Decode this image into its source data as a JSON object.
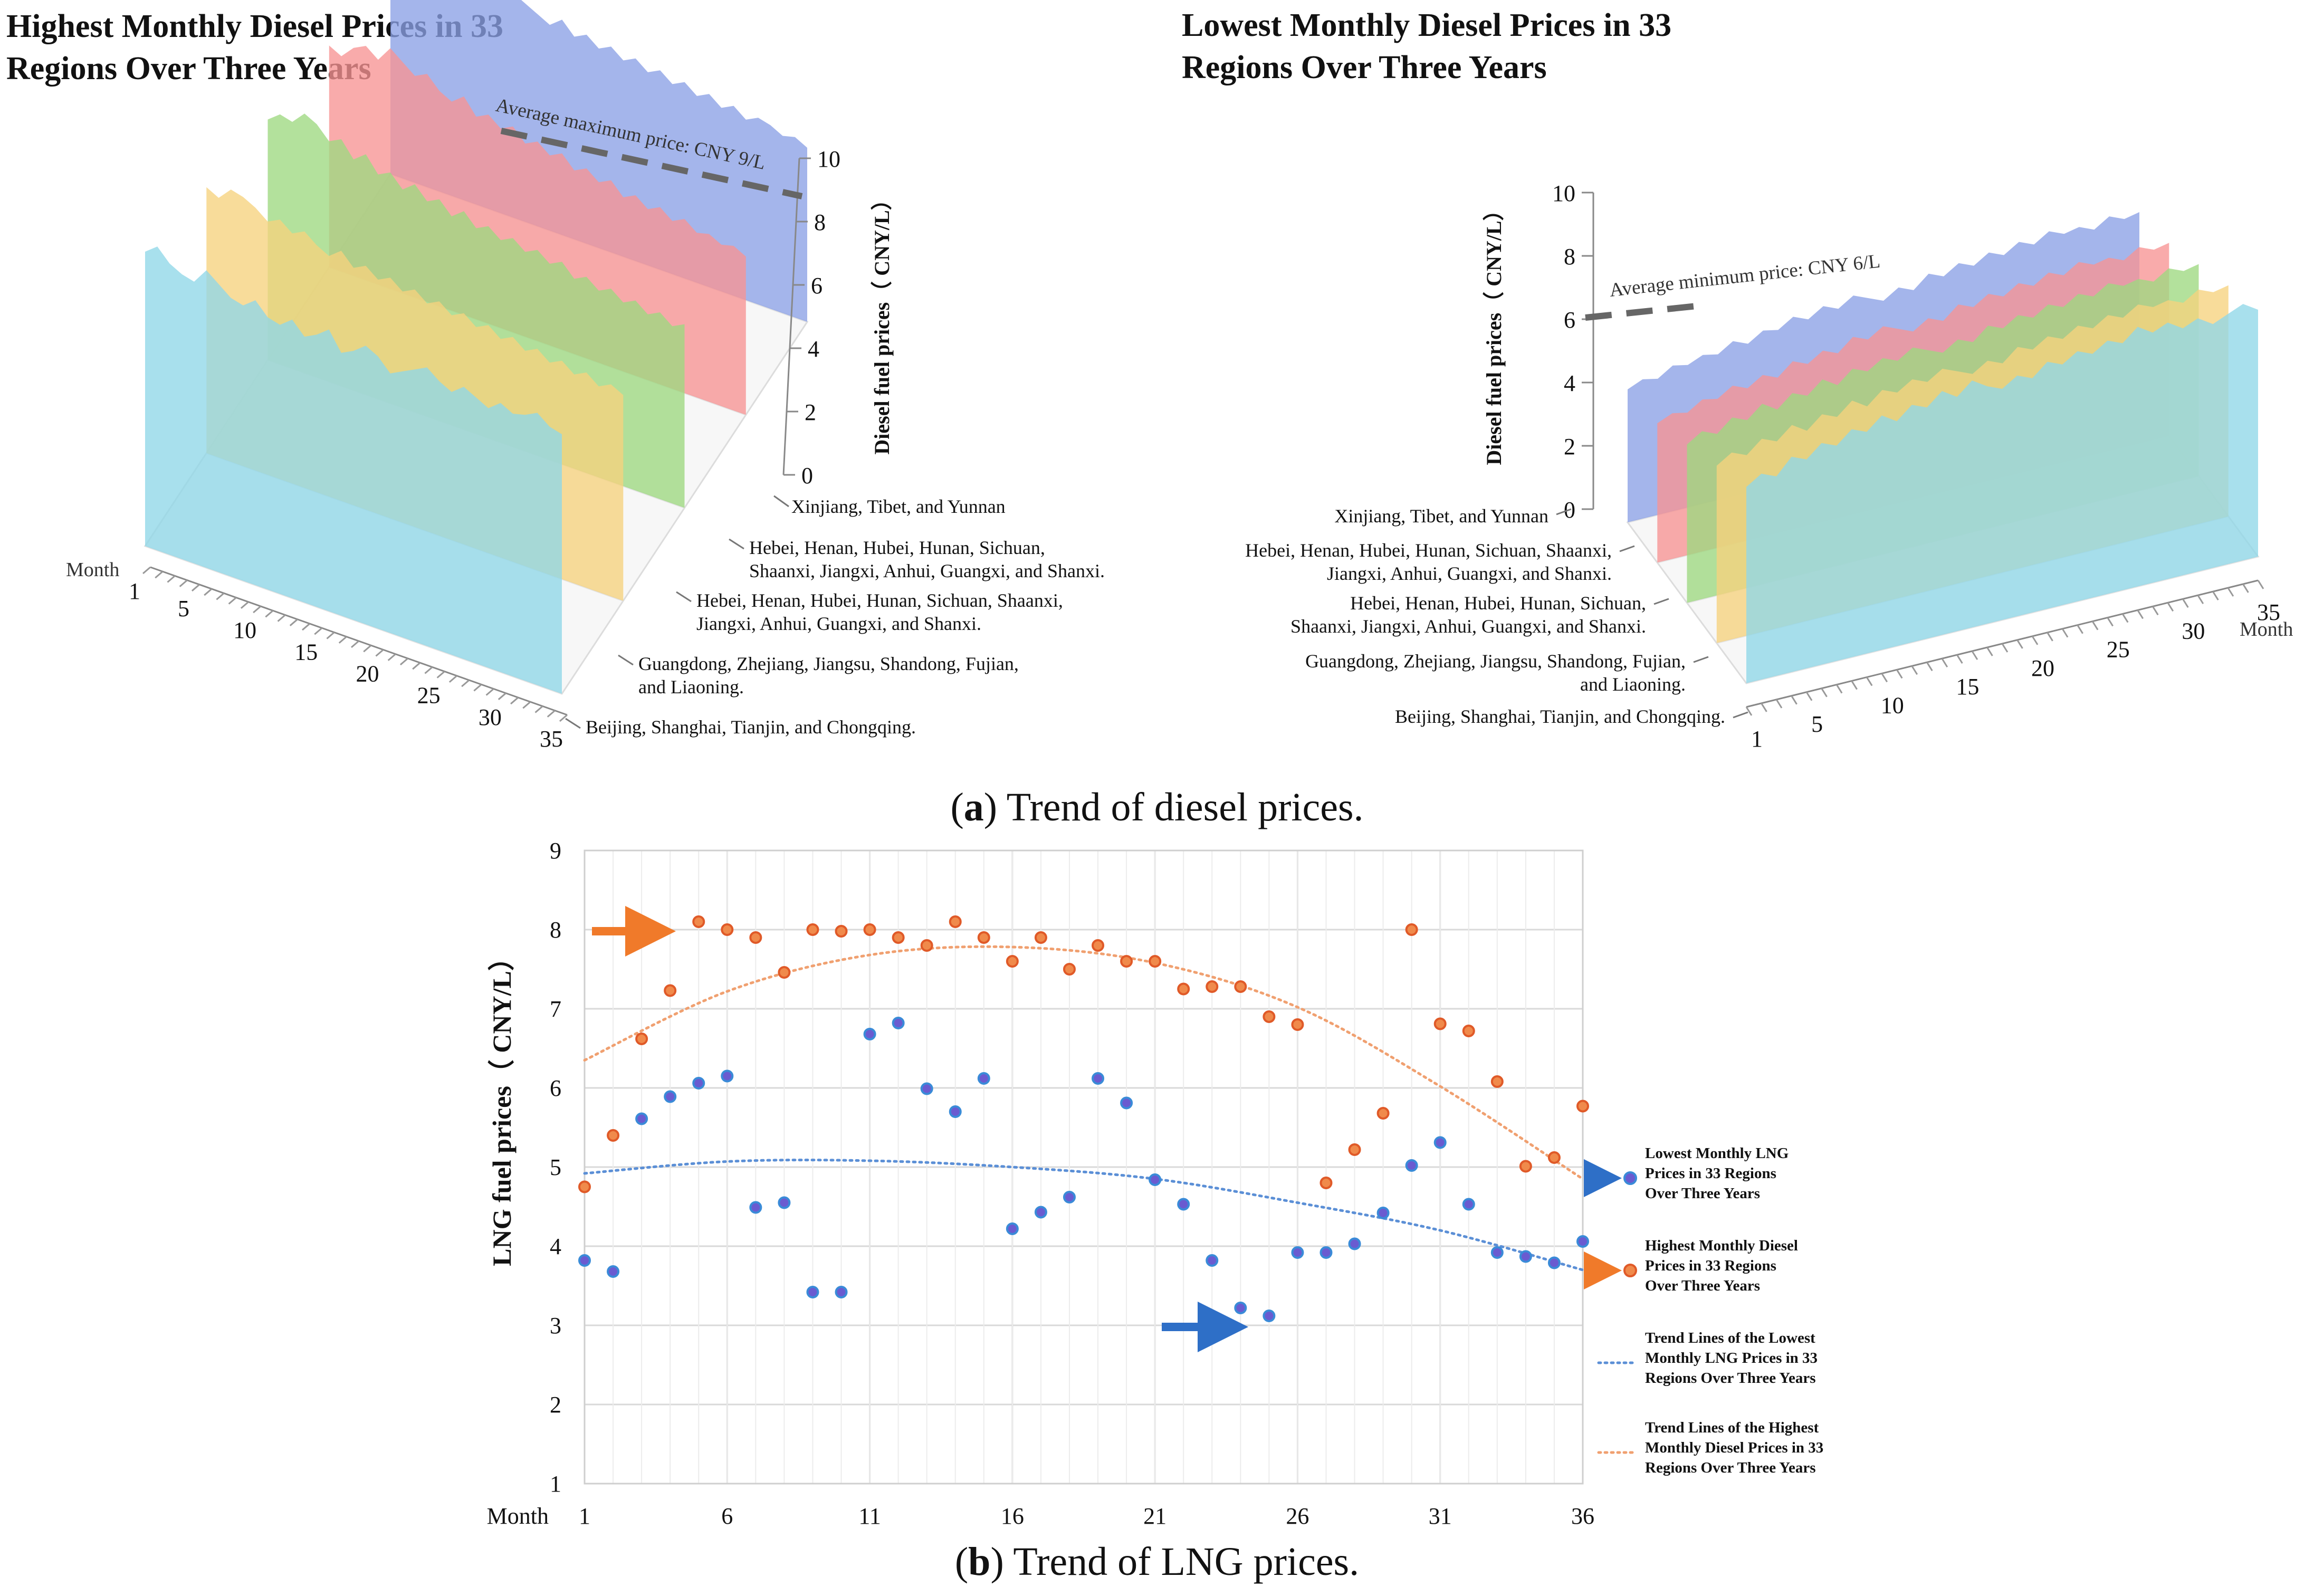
{
  "figure": {
    "caption_a_letter": "a",
    "caption_a_text": ") Trend of diesel prices.",
    "caption_b_letter": "b",
    "caption_b_text": ") Trend of LNG prices.",
    "caption_paren": "("
  },
  "chart_data": [
    {
      "type": "area",
      "title": "Highest Monthly Diesel Prices in 33 Regions Over Three Years",
      "title_lines": [
        "Highest Monthly Diesel Prices in 33",
        "Regions Over Three Years"
      ],
      "ylabel": "Diesel fuel prices（ CNY/L）",
      "xlabel": "Month",
      "ylim": [
        0,
        10
      ],
      "y_ticks": [
        "0",
        "2",
        "4",
        "6",
        "8",
        "10"
      ],
      "x_ticks": [
        "1",
        "5",
        "10",
        "15",
        "20",
        "25",
        "30",
        "35"
      ],
      "annotation": "Average maximum price: CNY 9/L",
      "series": [
        {
          "name": "Xinjiang, Tibet, and Yunnan",
          "name_lines": [
            "Xinjiang, Tibet, and Yunnan"
          ],
          "color": "#8fd7e8",
          "values": [
            9.3,
            9.6,
            9.2,
            9.0,
            8.9,
            9.4,
            9.1,
            8.8,
            8.7,
            9.0,
            8.6,
            8.5,
            8.8,
            8.4,
            8.6,
            8.9,
            8.3,
            8.5,
            8.8,
            8.6,
            8.2,
            8.4,
            8.6,
            8.8,
            8.5,
            8.3,
            8.6,
            8.4,
            8.2,
            8.5,
            8.3,
            8.4,
            8.6,
            8.3,
            8.2
          ]
        },
        {
          "name": "Hebei, Henan, Hubei, Hunan, Sichuan, Shaanxi, Jiangxi, Anhui, Guangxi, and Shanxi.",
          "name_lines": [
            "Hebei, Henan, Hubei, Hunan, Sichuan,",
            "Shaanxi, Jiangxi, Anhui, Guangxi, and Shanxi."
          ],
          "color": "#f6d27d",
          "values": [
            8.4,
            8.2,
            8.6,
            8.5,
            8.3,
            8.0,
            8.2,
            7.9,
            8.1,
            7.8,
            7.6,
            7.9,
            7.5,
            7.7,
            7.4,
            7.6,
            7.3,
            7.5,
            7.2,
            7.4,
            7.1,
            7.3,
            7.0,
            7.2,
            6.9,
            7.1,
            6.8,
            7.0,
            6.7,
            6.9,
            6.6,
            6.8,
            6.5,
            6.7,
            6.5
          ]
        },
        {
          "name": "Hebei, Henan, Hubei, Hunan, Sichuan, Shaanxi, Jiangxi, Anhui, Guangxi, and Shanxi.",
          "name_lines": [
            "Hebei, Henan, Hubei, Hunan, Sichuan, Shaanxi,",
            "Jiangxi, Anhui, Guangxi, and Shanxi."
          ],
          "color": "#9ed980",
          "values": [
            7.6,
            7.9,
            7.8,
            8.2,
            8.0,
            7.6,
            7.8,
            7.3,
            7.6,
            7.1,
            7.3,
            6.9,
            7.2,
            6.8,
            7.0,
            6.6,
            6.9,
            6.5,
            6.7,
            6.4,
            6.6,
            6.3,
            6.5,
            6.2,
            6.4,
            6.0,
            6.2,
            5.9,
            6.1,
            5.8,
            6.0,
            5.7,
            5.9,
            5.6,
            5.8
          ]
        },
        {
          "name": "Guangdong, Zhejiang, Jiangsu, Shandong, Fujian, and Liaoning.",
          "name_lines": [
            "Guangdong, Zhejiang, Jiangsu, Shandong, Fujian,",
            "and Liaoning."
          ],
          "color": "#f79494",
          "values": [
            7.0,
            6.8,
            7.2,
            7.4,
            7.1,
            7.6,
            7.3,
            7.0,
            7.2,
            6.8,
            6.6,
            6.9,
            6.4,
            6.6,
            6.3,
            6.5,
            6.1,
            6.3,
            6.0,
            6.2,
            5.8,
            6.0,
            5.7,
            5.9,
            5.5,
            5.7,
            5.4,
            5.6,
            5.3,
            5.5,
            5.2,
            5.3,
            5.1,
            5.2,
            5.0
          ]
        },
        {
          "name": "Beijing, Shanghai, Tianjin, and Chongqing.",
          "name_lines": [
            "Beijing, Shanghai, Tianjin, and Chongqing."
          ],
          "color": "#8aa0e6",
          "values": [
            6.5,
            6.7,
            6.6,
            6.9,
            6.7,
            7.0,
            6.8,
            7.2,
            7.0,
            6.8,
            7.1,
            6.9,
            6.7,
            6.5,
            6.8,
            6.4,
            6.6,
            6.3,
            6.5,
            6.2,
            6.4,
            6.1,
            6.3,
            6.0,
            6.2,
            5.9,
            6.1,
            5.8,
            6.0,
            5.7,
            5.9,
            5.8,
            5.6,
            5.7,
            5.5
          ]
        }
      ]
    },
    {
      "type": "area",
      "title": "Lowest Monthly Diesel Prices in 33 Regions Over Three Years",
      "title_lines": [
        "Lowest Monthly Diesel Prices in 33",
        "Regions Over Three Years"
      ],
      "ylabel": "Diesel fuel prices（ CNY/L）",
      "xlabel": "Month",
      "ylim": [
        0,
        10
      ],
      "y_ticks": [
        "0",
        "2",
        "4",
        "6",
        "8",
        "10"
      ],
      "x_ticks": [
        "1",
        "5",
        "10",
        "15",
        "20",
        "25",
        "30",
        "35"
      ],
      "annotation": "Average minimum price: CNY 6/L",
      "series": [
        {
          "name": "Xinjiang, Tibet, and Yunnan",
          "name_lines": [
            "Xinjiang, Tibet, and Yunnan"
          ],
          "color": "#8fd7e8",
          "values": [
            6.2,
            6.5,
            6.3,
            6.8,
            6.6,
            7.0,
            6.8,
            7.2,
            7.0,
            7.4,
            7.1,
            7.5,
            7.3,
            7.7,
            7.4,
            7.8,
            7.5,
            7.3,
            7.6,
            7.4,
            7.8,
            7.6,
            7.9,
            7.7,
            8.0,
            7.8,
            8.2,
            7.9,
            8.1,
            7.8,
            8.0,
            7.7,
            7.9,
            8.1,
            7.8
          ]
        },
        {
          "name": "Hebei, Henan, Hubei, Hunan, Sichuan, Shaanxi, Jiangxi, Anhui, Guangxi, and Shanxi.",
          "name_lines": [
            "Hebei, Henan, Hubei, Hunan, Sichuan, Shaanxi,",
            "Jiangxi, Anhui, Guangxi, and Shanxi."
          ],
          "color": "#f6d27d",
          "values": [
            5.6,
            5.9,
            5.7,
            6.1,
            5.9,
            6.3,
            6.0,
            6.4,
            6.2,
            6.6,
            6.3,
            6.7,
            6.5,
            6.8,
            6.6,
            6.9,
            6.7,
            6.5,
            6.8,
            6.6,
            7.0,
            6.8,
            7.1,
            6.9,
            7.2,
            7.0,
            7.3,
            7.1,
            7.4,
            7.2,
            7.3,
            7.1,
            7.4,
            7.2,
            7.3
          ]
        },
        {
          "name": "Hebei, Henan, Hubei, Hunan, Sichuan, Shaanxi, Jiangxi, Anhui, Guangxi, and Shanxi.",
          "name_lines": [
            "Hebei, Henan, Hubei, Hunan, Sichuan,",
            "Shaanxi, Jiangxi, Anhui, Guangxi, and Shanxi."
          ],
          "color": "#9ed980",
          "values": [
            5.0,
            5.3,
            5.1,
            5.5,
            5.3,
            5.7,
            5.4,
            5.8,
            5.6,
            6.0,
            5.7,
            6.1,
            5.9,
            6.2,
            6.0,
            6.3,
            6.1,
            5.9,
            6.2,
            6.0,
            6.4,
            6.2,
            6.5,
            6.3,
            6.6,
            6.4,
            6.7,
            6.5,
            6.8,
            6.6,
            6.7,
            6.5,
            6.8,
            6.6,
            6.7
          ]
        },
        {
          "name": "Guangdong, Zhejiang, Jiangsu, Shandong, Fujian, and Liaoning.",
          "name_lines": [
            "Guangdong, Zhejiang, Jiangsu, Shandong, Fujian,",
            "and Liaoning."
          ],
          "color": "#f79494",
          "values": [
            4.4,
            4.6,
            4.5,
            4.8,
            4.7,
            5.0,
            4.8,
            5.1,
            4.9,
            5.3,
            5.1,
            5.4,
            5.2,
            5.6,
            5.4,
            5.7,
            5.5,
            5.3,
            5.6,
            5.4,
            5.8,
            5.6,
            5.9,
            5.7,
            6.0,
            5.8,
            6.1,
            5.9,
            6.2,
            6.0,
            6.1,
            5.9,
            6.2,
            6.0,
            6.1
          ]
        },
        {
          "name": "Beijing, Shanghai, Tianjin, and Chongqing.",
          "name_lines": [
            "Beijing, Shanghai, Tianjin, and Chongqing."
          ],
          "color": "#8aa0e6",
          "values": [
            4.2,
            4.4,
            4.3,
            4.6,
            4.5,
            4.7,
            4.6,
            4.9,
            4.7,
            5.0,
            4.9,
            5.2,
            5.0,
            5.3,
            5.1,
            5.4,
            5.2,
            5.0,
            5.3,
            5.1,
            5.5,
            5.3,
            5.6,
            5.4,
            5.7,
            5.5,
            5.8,
            5.6,
            5.9,
            5.7,
            5.8,
            5.6,
            5.9,
            5.7,
            5.8
          ]
        }
      ]
    },
    {
      "type": "scatter",
      "title": "Trend of LNG prices",
      "ylabel": "LNG fuel prices（ CNY/L）",
      "xlabel": "Month",
      "xlim": [
        1,
        36
      ],
      "ylim": [
        1,
        9
      ],
      "x_ticks": [
        "1",
        "6",
        "11",
        "16",
        "21",
        "26",
        "31",
        "36"
      ],
      "y_ticks": [
        "1",
        "2",
        "3",
        "4",
        "5",
        "6",
        "7",
        "8",
        "9"
      ],
      "x": [
        1,
        2,
        3,
        4,
        5,
        6,
        7,
        8,
        9,
        10,
        11,
        12,
        13,
        14,
        15,
        16,
        17,
        18,
        19,
        20,
        21,
        22,
        23,
        24,
        25,
        26,
        27,
        28,
        29,
        30,
        31,
        32,
        33,
        34,
        35,
        36
      ],
      "series": [
        {
          "name": "Lowest Monthly LNG Prices in 33 Regions Over Three Years",
          "name_lines": [
            "Lowest Monthly LNG",
            "Prices in 33 Regions",
            "Over Three Years"
          ],
          "color": "#6a5bd0",
          "values": [
            3.82,
            3.68,
            5.61,
            5.89,
            6.06,
            6.15,
            4.49,
            4.55,
            3.42,
            3.42,
            6.68,
            6.82,
            5.99,
            5.7,
            6.12,
            4.22,
            4.43,
            4.62,
            6.12,
            5.81,
            4.84,
            4.53,
            3.82,
            3.22,
            3.12,
            3.92,
            3.92,
            4.03,
            4.42,
            5.02,
            5.31,
            4.53,
            3.92,
            3.87,
            3.79,
            4.06
          ]
        },
        {
          "name": "Highest Monthly Diesel Prices in 33 Regions Over Three Years",
          "name_lines": [
            "Highest Monthly Diesel",
            "Prices in 33 Regions",
            "Over Three Years"
          ],
          "color": "#f08a4b",
          "values": [
            4.75,
            5.4,
            6.62,
            7.23,
            8.1,
            8.0,
            7.9,
            7.46,
            8.0,
            7.98,
            8.0,
            7.9,
            7.8,
            8.1,
            7.9,
            7.6,
            7.9,
            7.5,
            7.8,
            7.6,
            7.6,
            7.25,
            7.28,
            7.28,
            6.9,
            6.8,
            4.8,
            5.22,
            5.68,
            8.0,
            6.81,
            6.72,
            6.08,
            5.01,
            5.12,
            5.77
          ]
        }
      ],
      "trendlines": [
        {
          "name": "Trend Lines of the Lowest Monthly LNG Prices in 33 Regions Over Three Years",
          "name_lines": [
            "Trend Lines of the Lowest",
            "Monthly LNG Prices in 33",
            "Regions Over Three Years"
          ],
          "color": "#5b8fd6",
          "x": [
            1,
            6,
            11,
            16,
            21,
            26,
            31,
            36
          ],
          "values": [
            4.92,
            5.07,
            5.08,
            5.0,
            4.85,
            4.55,
            4.2,
            3.7
          ]
        },
        {
          "name": "Trend Lines of the Highest Monthly Diesel Prices in 33 Regions Over Three Years",
          "name_lines": [
            "Trend Lines of the Highest",
            "Monthly Diesel Prices in 33",
            "Regions Over Three Years"
          ],
          "color": "#f0a070",
          "x": [
            1,
            6,
            11,
            16,
            21,
            26,
            31,
            36
          ],
          "values": [
            6.35,
            7.22,
            7.68,
            7.78,
            7.58,
            7.02,
            6.02,
            4.85
          ]
        }
      ]
    }
  ]
}
